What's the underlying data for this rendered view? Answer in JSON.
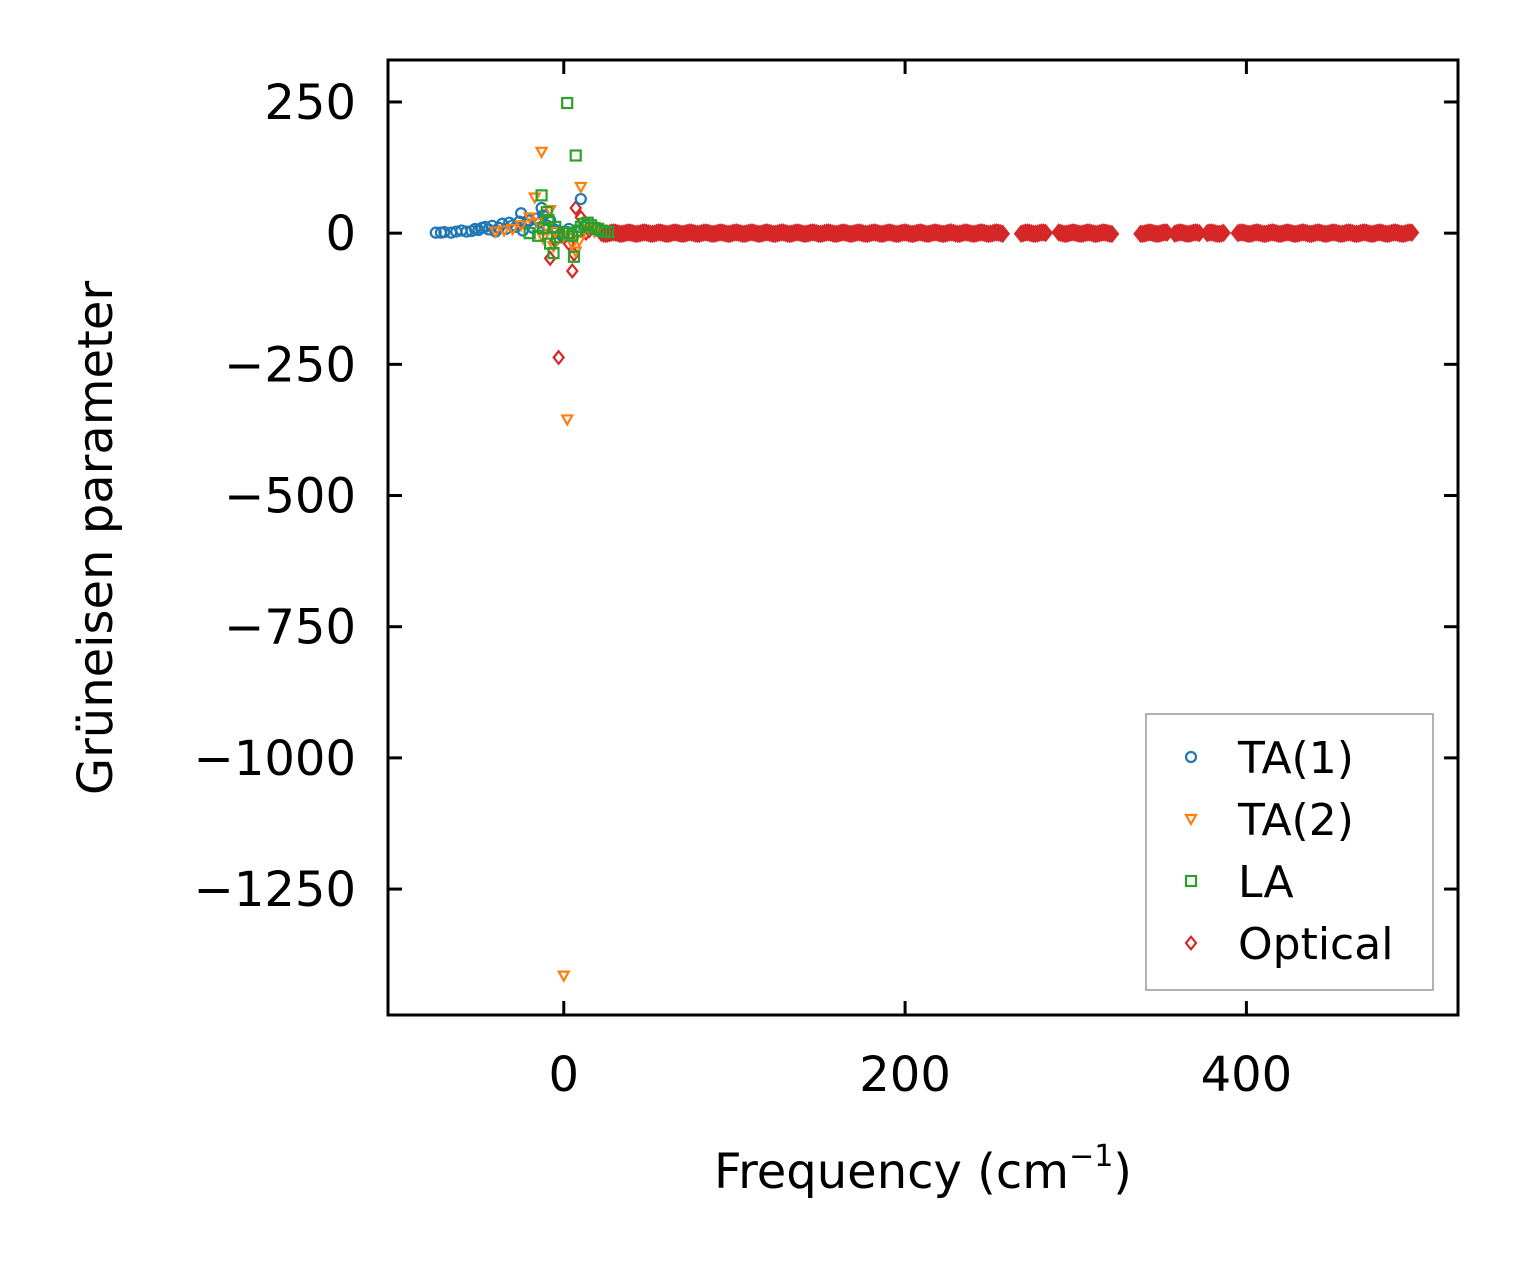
{
  "chart_data": {
    "type": "scatter",
    "xlabel": "Frequency (cm",
    "xlabel_sup": "−1",
    "xlabel_close": ")",
    "ylabel": "Grüneisen parameter",
    "xlim": [
      -103,
      524
    ],
    "ylim": [
      -1490,
      330
    ],
    "xticks": [
      0,
      200,
      400
    ],
    "xtick_labels": [
      "0",
      "200",
      "400"
    ],
    "yticks": [
      250,
      0,
      -250,
      -500,
      -750,
      -1000,
      -1250
    ],
    "ytick_labels": [
      "250",
      "0",
      "−250",
      "−500",
      "−750",
      "−1000",
      "−1250"
    ],
    "grid": false,
    "legend_position": "lower-right",
    "series": [
      {
        "name": "TA(1)",
        "marker": "circle",
        "color": "#1f77b4",
        "points": [
          [
            -75,
            1
          ],
          [
            -72,
            1
          ],
          [
            -70,
            2
          ],
          [
            -66,
            1
          ],
          [
            -63,
            3
          ],
          [
            -60,
            5
          ],
          [
            -57,
            3
          ],
          [
            -54,
            4
          ],
          [
            -52,
            8
          ],
          [
            -50,
            6
          ],
          [
            -48,
            10
          ],
          [
            -46,
            12
          ],
          [
            -44,
            7
          ],
          [
            -42,
            14
          ],
          [
            -40,
            3
          ],
          [
            -38,
            10
          ],
          [
            -36,
            18
          ],
          [
            -34,
            8
          ],
          [
            -32,
            20
          ],
          [
            -30,
            15
          ],
          [
            -28,
            12
          ],
          [
            -26,
            22
          ],
          [
            -24,
            5
          ],
          [
            -22,
            18
          ],
          [
            -20,
            24
          ],
          [
            -18,
            10
          ],
          [
            -16,
            28
          ],
          [
            -14,
            20
          ],
          [
            -12,
            34
          ],
          [
            -10,
            15
          ],
          [
            -8,
            25
          ],
          [
            -6,
            8
          ],
          [
            -4,
            5
          ],
          [
            -2,
            -2
          ],
          [
            0,
            3
          ],
          [
            3,
            8
          ],
          [
            5,
            -4
          ],
          [
            8,
            2
          ],
          [
            10,
            65
          ],
          [
            12,
            12
          ],
          [
            -25,
            38
          ],
          [
            -13,
            48
          ]
        ]
      },
      {
        "name": "TA(2)",
        "marker": "triangle-down",
        "color": "#ff7f0e",
        "points": [
          [
            -13,
            155
          ],
          [
            10,
            88
          ],
          [
            -17,
            68
          ],
          [
            -8,
            44
          ],
          [
            -20,
            30
          ],
          [
            -15,
            20
          ],
          [
            -10,
            10
          ],
          [
            -5,
            2
          ],
          [
            0,
            -5
          ],
          [
            3,
            -8
          ],
          [
            5,
            -20
          ],
          [
            7,
            -35
          ],
          [
            9,
            -15
          ],
          [
            12,
            5
          ],
          [
            15,
            8
          ],
          [
            18,
            3
          ],
          [
            20,
            10
          ],
          [
            2,
            -355
          ],
          [
            0,
            -1415
          ],
          [
            -30,
            8
          ],
          [
            -25,
            15
          ],
          [
            -35,
            5
          ],
          [
            -40,
            3
          ],
          [
            -12,
            -10
          ],
          [
            -6,
            -25
          ]
        ]
      },
      {
        "name": "LA",
        "marker": "square",
        "color": "#2ca02c",
        "points": [
          [
            2,
            248
          ],
          [
            7,
            148
          ],
          [
            -13,
            72
          ],
          [
            -10,
            40
          ],
          [
            -9,
            25
          ],
          [
            -12,
            10
          ],
          [
            -15,
            -5
          ],
          [
            -8,
            -20
          ],
          [
            -6,
            -38
          ],
          [
            -4,
            -8
          ],
          [
            0,
            2
          ],
          [
            3,
            0
          ],
          [
            5,
            -5
          ],
          [
            6,
            -45
          ],
          [
            8,
            5
          ],
          [
            10,
            12
          ],
          [
            12,
            18
          ],
          [
            14,
            20
          ],
          [
            16,
            15
          ],
          [
            18,
            10
          ],
          [
            20,
            8
          ],
          [
            22,
            5
          ],
          [
            24,
            3
          ],
          [
            26,
            2
          ],
          [
            -20,
            0
          ],
          [
            -5,
            12
          ]
        ]
      },
      {
        "name": "Optical",
        "marker": "diamond",
        "color": "#d62728",
        "points": [
          [
            -3,
            -237
          ],
          [
            5,
            -72
          ],
          [
            7,
            48
          ],
          [
            10,
            30
          ],
          [
            -8,
            -48
          ],
          [
            -5,
            -15
          ],
          [
            15,
            5
          ],
          [
            13,
            0
          ],
          [
            6,
            -40
          ],
          [
            3,
            -20
          ]
        ],
        "bands": [
          [
            22,
            258
          ],
          [
            268,
            283
          ],
          [
            290,
            322
          ],
          [
            338,
            354
          ],
          [
            358,
            373
          ],
          [
            377,
            387
          ],
          [
            395,
            498
          ]
        ]
      }
    ]
  }
}
